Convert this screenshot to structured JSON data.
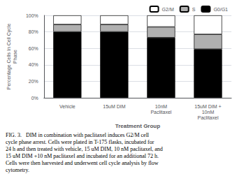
{
  "chart_data": {
    "type": "bar",
    "categories": [
      "Vehicle",
      "15uM DIM",
      "10nM\nPaclitaxel",
      "15uM DIM +\n10nM\nPaclitaxel"
    ],
    "series": [
      {
        "name": "G0/G1",
        "color": "#000000",
        "values": [
          80,
          80,
          73,
          59
        ]
      },
      {
        "name": "S",
        "color": "#b0b0b0",
        "values": [
          9,
          9,
          13,
          18
        ]
      },
      {
        "name": "G2/M",
        "color": "#ffffff",
        "values": [
          11,
          11,
          14,
          23
        ]
      }
    ],
    "stacked": true,
    "xlabel": "Treatment Group",
    "ylabel": "Percentage Cells In Cell Cycle\nPhase",
    "ylim": [
      0,
      100
    ],
    "yticks": [
      {
        "value": 0,
        "label": "0%"
      },
      {
        "value": 20,
        "label": "20%"
      },
      {
        "value": 40,
        "label": "40%"
      },
      {
        "value": 60,
        "label": "60%"
      },
      {
        "value": 80,
        "label": "80%"
      },
      {
        "value": 100,
        "label": "100%"
      }
    ],
    "grid": true,
    "legend": "top",
    "caption": "FIG. 3.   DIM in combination with paclitaxel induces G2/M cell\ncycle phase arrest. Cells were plated in T-175 flasks, incubated for\n24 h and then treated with vehicle, 15 uM DIM, 10 nM paclitaxel, and\n15 uM DIM +10 nM paclitaxel and incubated for an additional 72 h.\nCells were then harvested and underwent cell cycle analysis by flow\ncytometry."
  }
}
